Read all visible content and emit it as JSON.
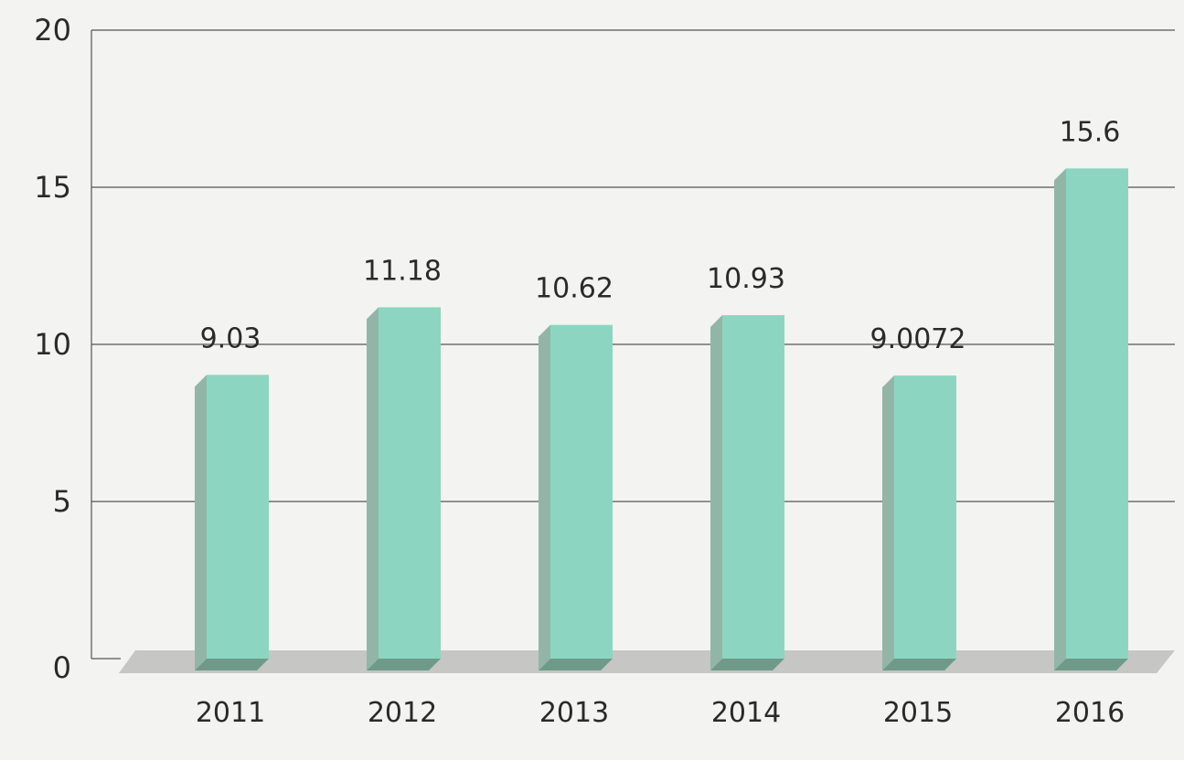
{
  "chart_data": {
    "type": "bar",
    "title": "",
    "xlabel": "",
    "ylabel": "",
    "categories": [
      "2011",
      "2012",
      "2013",
      "2014",
      "2015",
      "2016"
    ],
    "values": [
      9.03,
      11.18,
      10.62,
      10.93,
      9.0072,
      15.6
    ],
    "data_labels": [
      "9.03",
      "11.18",
      "10.62",
      "10.93",
      "9.0072",
      "15.6"
    ],
    "ylim": [
      0,
      20
    ],
    "y_ticks": [
      0,
      5,
      10,
      15,
      20
    ],
    "y_tick_labels": [
      "0",
      "5",
      "10",
      "15",
      "20"
    ],
    "grid": true,
    "style": "3d-column",
    "colors": {
      "background": "#f3f3f1",
      "bar_front": "#8cd6c1",
      "bar_side": "#93b5a8",
      "bar_bottom": "#6f9a8a",
      "floor": "#c6c6c4",
      "grid": "#555555"
    }
  }
}
